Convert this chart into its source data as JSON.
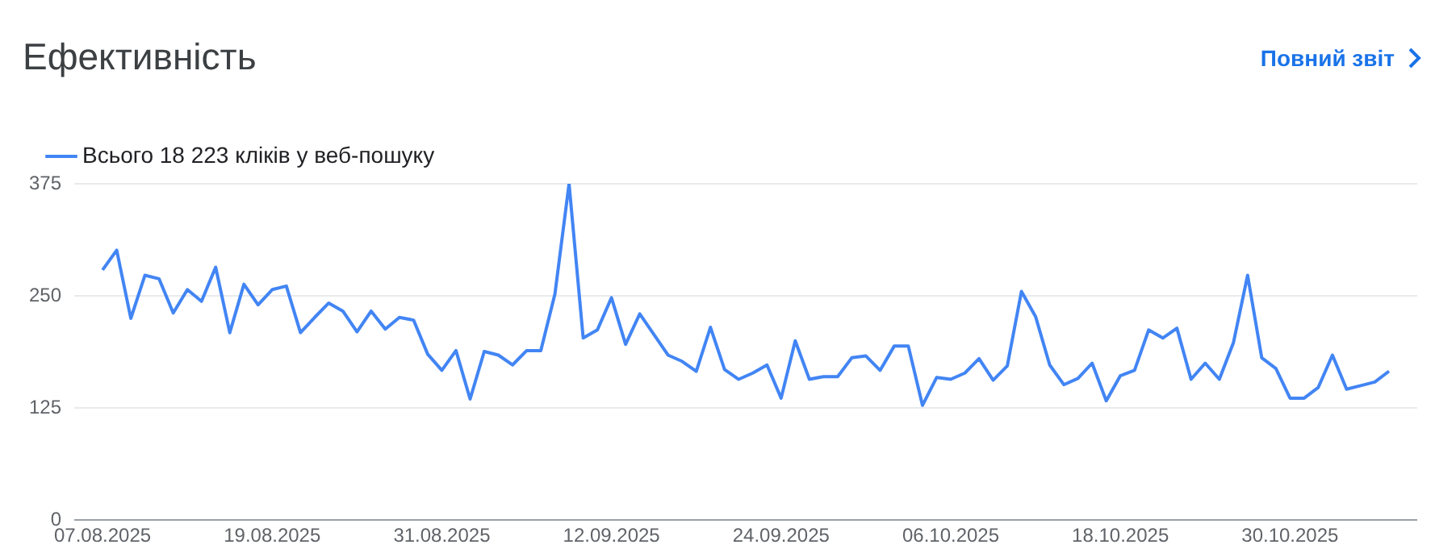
{
  "chart_data": {
    "type": "line",
    "title": "Ефективність",
    "annotations": [
      "Повний звіт"
    ],
    "x": [
      "2025-08-07",
      "2025-08-08",
      "2025-08-09",
      "2025-08-10",
      "2025-08-11",
      "2025-08-12",
      "2025-08-13",
      "2025-08-14",
      "2025-08-15",
      "2025-08-16",
      "2025-08-17",
      "2025-08-18",
      "2025-08-19",
      "2025-08-20",
      "2025-08-21",
      "2025-08-22",
      "2025-08-23",
      "2025-08-24",
      "2025-08-25",
      "2025-08-26",
      "2025-08-27",
      "2025-08-28",
      "2025-08-29",
      "2025-08-30",
      "2025-08-31",
      "2025-09-01",
      "2025-09-02",
      "2025-09-03",
      "2025-09-04",
      "2025-09-05",
      "2025-09-06",
      "2025-09-07",
      "2025-09-08",
      "2025-09-09",
      "2025-09-10",
      "2025-09-11",
      "2025-09-12",
      "2025-09-13",
      "2025-09-14",
      "2025-09-15",
      "2025-09-16",
      "2025-09-17",
      "2025-09-18",
      "2025-09-19",
      "2025-09-20",
      "2025-09-21",
      "2025-09-22",
      "2025-09-23",
      "2025-09-24",
      "2025-09-25",
      "2025-09-26",
      "2025-09-27",
      "2025-09-28",
      "2025-09-29",
      "2025-09-30",
      "2025-10-01",
      "2025-10-02",
      "2025-10-03",
      "2025-10-04",
      "2025-10-05",
      "2025-10-06",
      "2025-10-07",
      "2025-10-08",
      "2025-10-09",
      "2025-10-10",
      "2025-10-11",
      "2025-10-12",
      "2025-10-13",
      "2025-10-14",
      "2025-10-15",
      "2025-10-16",
      "2025-10-17",
      "2025-10-18",
      "2025-10-19",
      "2025-10-20",
      "2025-10-21",
      "2025-10-22",
      "2025-10-23",
      "2025-10-24",
      "2025-10-25",
      "2025-10-26",
      "2025-10-27",
      "2025-10-28",
      "2025-10-29",
      "2025-10-30",
      "2025-10-31",
      "2025-11-01",
      "2025-11-02",
      "2025-11-03",
      "2025-11-04",
      "2025-11-05",
      "2025-11-06"
    ],
    "series": [
      {
        "name": "Всього 18 223 кліків у веб-пошуку",
        "color": "#4285f4",
        "values": [
          279,
          301,
          225,
          273,
          269,
          231,
          257,
          244,
          282,
          209,
          263,
          240,
          257,
          261,
          209,
          226,
          242,
          233,
          210,
          233,
          213,
          226,
          223,
          185,
          167,
          189,
          135,
          188,
          184,
          173,
          189,
          189,
          252,
          375,
          203,
          212,
          248,
          196,
          230,
          207,
          184,
          177,
          166,
          215,
          168,
          157,
          164,
          173,
          136,
          200,
          157,
          160,
          160,
          181,
          183,
          167,
          194,
          194,
          128,
          159,
          157,
          164,
          180,
          156,
          172,
          255,
          227,
          173,
          151,
          158,
          175,
          133,
          161,
          167,
          212,
          203,
          214,
          157,
          175,
          157,
          198,
          273,
          181,
          169,
          136,
          136,
          148,
          184,
          146,
          150,
          154,
          166
        ]
      }
    ],
    "xlim": [
      "2025-08-05",
      "2025-11-08"
    ],
    "xticks": [
      {
        "value": "2025-08-07",
        "label": "07.08.2025"
      },
      {
        "value": "2025-08-19",
        "label": "19.08.2025"
      },
      {
        "value": "2025-08-31",
        "label": "31.08.2025"
      },
      {
        "value": "2025-09-12",
        "label": "12.09.2025"
      },
      {
        "value": "2025-09-24",
        "label": "24.09.2025"
      },
      {
        "value": "2025-10-06",
        "label": "06.10.2025"
      },
      {
        "value": "2025-10-18",
        "label": "18.10.2025"
      },
      {
        "value": "2025-10-30",
        "label": "30.10.2025"
      }
    ],
    "ylim": [
      0,
      375
    ],
    "yticks": [
      0,
      125,
      250,
      375
    ],
    "grid": "y",
    "legend": "top left"
  }
}
